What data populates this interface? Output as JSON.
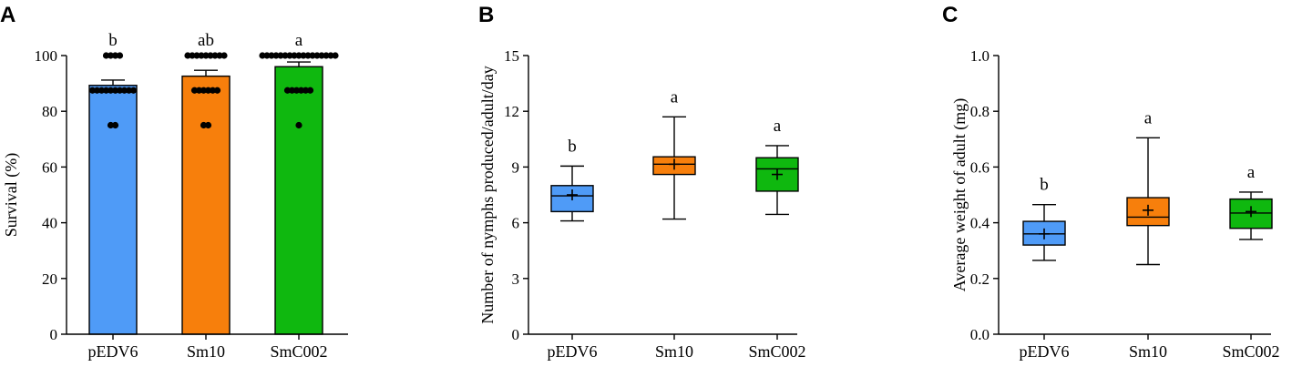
{
  "colors": {
    "pEDV6": "#4f9bf7",
    "Sm10": "#f77f0c",
    "SmC002": "#0fb80f",
    "axis": "#000000"
  },
  "chart_data": [
    {
      "id": "A",
      "type": "bar",
      "panel_label": "A",
      "title": "",
      "xlabel": "",
      "ylabel": "Survival (%)",
      "ylim": [
        0,
        100
      ],
      "yticks": [
        0,
        20,
        40,
        60,
        80,
        100
      ],
      "ytick_labels": [
        "0",
        "20",
        "40",
        "60",
        "80",
        "100"
      ],
      "categories": [
        "pEDV6",
        "Sm10",
        "SmC002"
      ],
      "values": [
        89.3,
        92.6,
        96.0
      ],
      "errors": [
        1.9,
        2.1,
        1.7
      ],
      "significance": [
        "b",
        "ab",
        "a"
      ],
      "points": [
        [
          100,
          100,
          100,
          100,
          87.5,
          87.5,
          87.5,
          87.5,
          87.5,
          87.5,
          87.5,
          87.5,
          87.5,
          87.5,
          75,
          75
        ],
        [
          100,
          100,
          100,
          100,
          100,
          100,
          100,
          100,
          100,
          87.5,
          87.5,
          87.5,
          87.5,
          87.5,
          87.5,
          75,
          75
        ],
        [
          100,
          100,
          100,
          100,
          100,
          100,
          100,
          100,
          100,
          100,
          100,
          100,
          100,
          100,
          100,
          100,
          100,
          87.5,
          87.5,
          87.5,
          87.5,
          87.5,
          87.5,
          75
        ]
      ]
    },
    {
      "id": "B",
      "type": "box",
      "panel_label": "B",
      "title": "",
      "xlabel": "",
      "ylabel": "Number of nymphs produced/adult/day",
      "ylim": [
        0,
        15
      ],
      "yticks": [
        0,
        3,
        6,
        9,
        12,
        15
      ],
      "ytick_labels": [
        "0",
        "3",
        "6",
        "9",
        "12",
        "15"
      ],
      "categories": [
        "pEDV6",
        "Sm10",
        "SmC002"
      ],
      "boxes": [
        {
          "min": 6.1,
          "q1": 6.6,
          "median": 7.45,
          "q3": 8.0,
          "max": 9.05,
          "mean": 7.5
        },
        {
          "min": 6.2,
          "q1": 8.6,
          "median": 9.15,
          "q3": 9.55,
          "max": 11.7,
          "mean": 9.15
        },
        {
          "min": 6.45,
          "q1": 7.7,
          "median": 8.9,
          "q3": 9.5,
          "max": 10.15,
          "mean": 8.6
        }
      ],
      "significance": [
        "b",
        "a",
        "a"
      ]
    },
    {
      "id": "C",
      "type": "box",
      "panel_label": "C",
      "title": "",
      "xlabel": "",
      "ylabel": "Average weight of adult (mg)",
      "ylim": [
        0,
        1.0
      ],
      "yticks": [
        0,
        0.2,
        0.4,
        0.6,
        0.8,
        1.0
      ],
      "ytick_labels": [
        "0.0",
        "0.2",
        "0.4",
        "0.6",
        "0.8",
        "1.0"
      ],
      "categories": [
        "pEDV6",
        "Sm10",
        "SmC002"
      ],
      "boxes": [
        {
          "min": 0.265,
          "q1": 0.32,
          "median": 0.36,
          "q3": 0.405,
          "max": 0.465,
          "mean": 0.36
        },
        {
          "min": 0.25,
          "q1": 0.39,
          "median": 0.42,
          "q3": 0.49,
          "max": 0.705,
          "mean": 0.445
        },
        {
          "min": 0.34,
          "q1": 0.38,
          "median": 0.435,
          "q3": 0.485,
          "max": 0.51,
          "mean": 0.44
        }
      ],
      "significance": [
        "b",
        "a",
        "a"
      ]
    }
  ]
}
